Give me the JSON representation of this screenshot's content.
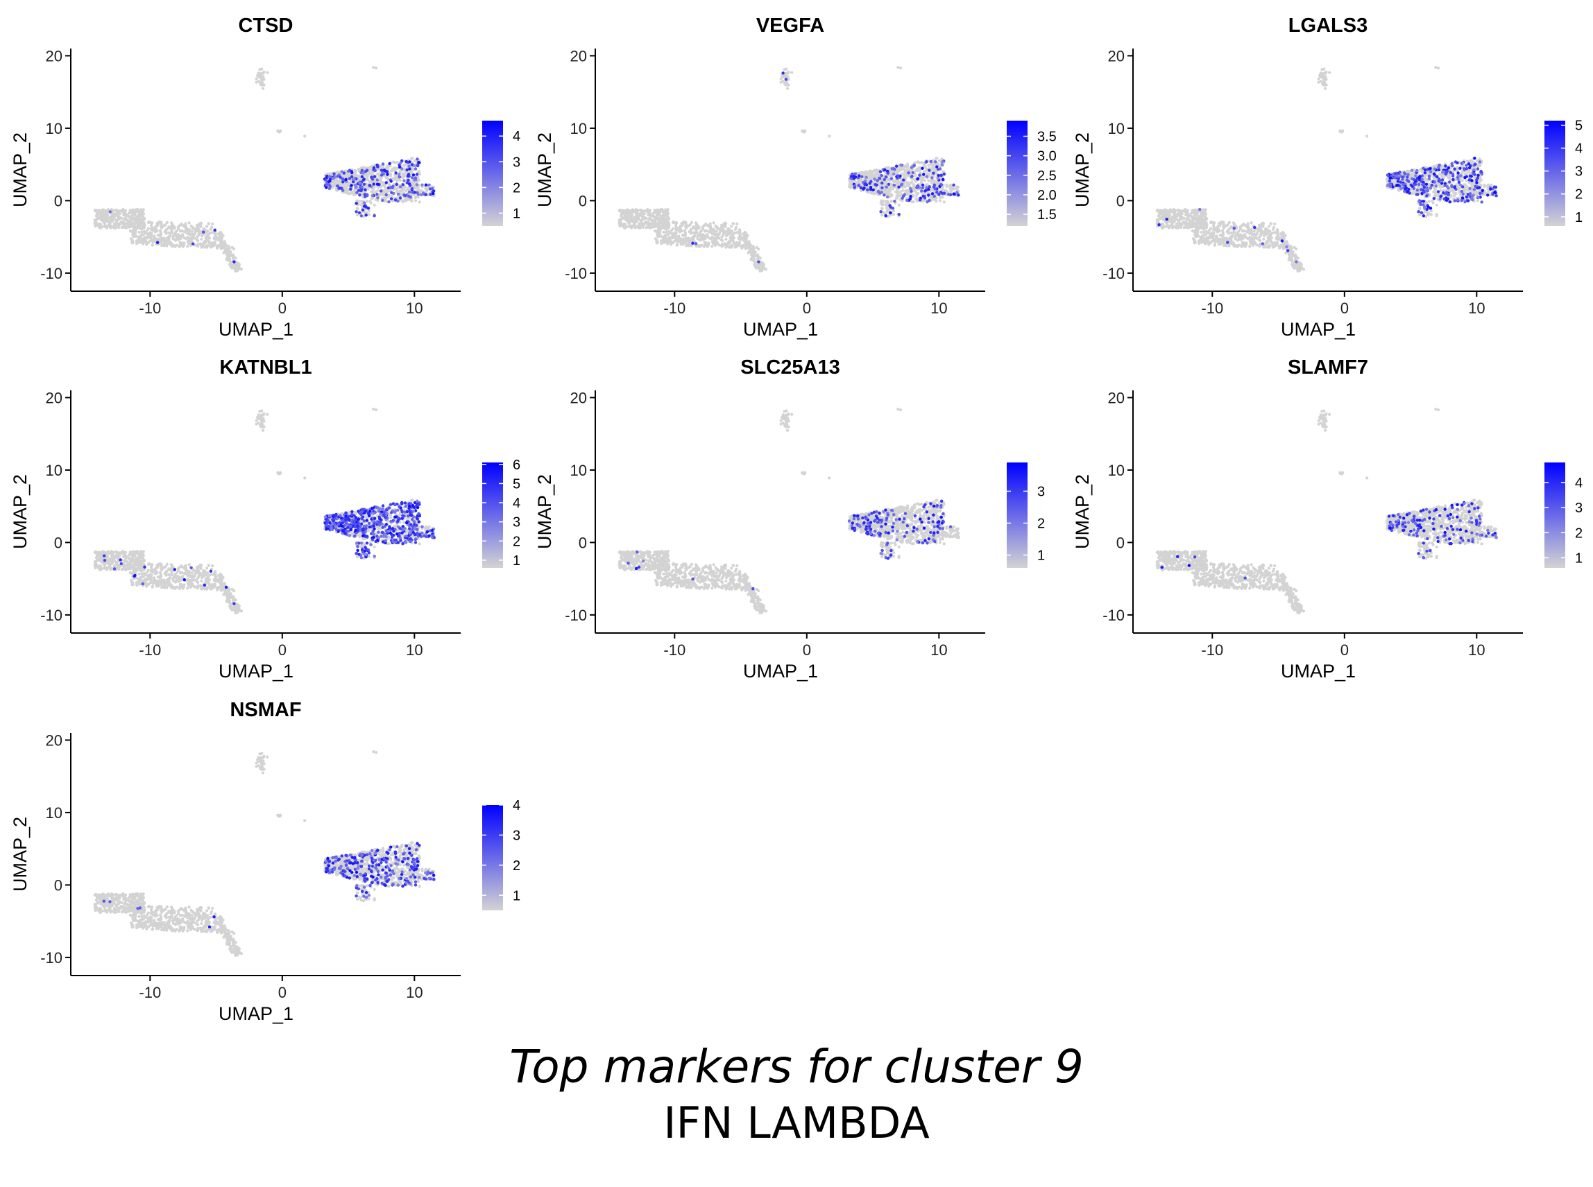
{
  "chart_data": [
    {
      "type": "scatter",
      "title": "CTSD",
      "xlabel": "UMAP_1",
      "ylabel": "UMAP_2",
      "xlim": [
        -16,
        13.5
      ],
      "ylim": [
        -12.5,
        21
      ],
      "xticks": [
        -10,
        0,
        10
      ],
      "yticks": [
        -10,
        0,
        10,
        20
      ],
      "grid": false,
      "legend": {
        "position": "right",
        "min": 0.5,
        "max": 4.6,
        "ticks": [
          "1",
          "2",
          "3",
          "4"
        ],
        "tick_values": [
          1,
          2,
          3,
          4
        ],
        "low_color": "#d3d3d3",
        "high_color": "#0000ff"
      },
      "expression_level": 0.22
    },
    {
      "type": "scatter",
      "title": "VEGFA",
      "xlabel": "UMAP_1",
      "ylabel": "UMAP_2",
      "xlim": [
        -16,
        13.5
      ],
      "ylim": [
        -12.5,
        21
      ],
      "xticks": [
        -10,
        0,
        10
      ],
      "yticks": [
        -10,
        0,
        10,
        20
      ],
      "grid": false,
      "legend": {
        "position": "right",
        "min": 1.2,
        "max": 3.9,
        "ticks": [
          "1.5",
          "2.0",
          "2.5",
          "3.0",
          "3.5"
        ],
        "tick_values": [
          1.5,
          2.0,
          2.5,
          3.0,
          3.5
        ],
        "low_color": "#d3d3d3",
        "high_color": "#0000ff"
      },
      "expression_level": 0.16
    },
    {
      "type": "scatter",
      "title": "LGALS3",
      "xlabel": "UMAP_1",
      "ylabel": "UMAP_2",
      "xlim": [
        -16,
        13.5
      ],
      "ylim": [
        -12.5,
        21
      ],
      "xticks": [
        -10,
        0,
        10
      ],
      "yticks": [
        -10,
        0,
        10,
        20
      ],
      "grid": false,
      "legend": {
        "position": "right",
        "min": 0.6,
        "max": 5.2,
        "ticks": [
          "1",
          "2",
          "3",
          "4",
          "5"
        ],
        "tick_values": [
          1,
          2,
          3,
          4,
          5
        ],
        "low_color": "#d3d3d3",
        "high_color": "#0000ff"
      },
      "expression_level": 0.3
    },
    {
      "type": "scatter",
      "title": "KATNBL1",
      "xlabel": "UMAP_1",
      "ylabel": "UMAP_2",
      "xlim": [
        -16,
        13.5
      ],
      "ylim": [
        -12.5,
        21
      ],
      "xticks": [
        -10,
        0,
        10
      ],
      "yticks": [
        -10,
        0,
        10,
        20
      ],
      "grid": false,
      "legend": {
        "position": "right",
        "min": 0.6,
        "max": 6.1,
        "ticks": [
          "1",
          "2",
          "3",
          "4",
          "5",
          "6"
        ],
        "tick_values": [
          1,
          2,
          3,
          4,
          5,
          6
        ],
        "low_color": "#d3d3d3",
        "high_color": "#0000ff"
      },
      "expression_level": 0.5
    },
    {
      "type": "scatter",
      "title": "SLC25A13",
      "xlabel": "UMAP_1",
      "ylabel": "UMAP_2",
      "xlim": [
        -16,
        13.5
      ],
      "ylim": [
        -12.5,
        21
      ],
      "xticks": [
        -10,
        0,
        10
      ],
      "yticks": [
        -10,
        0,
        10,
        20
      ],
      "grid": false,
      "legend": {
        "position": "right",
        "min": 0.6,
        "max": 3.9,
        "ticks": [
          "1",
          "2",
          "3"
        ],
        "tick_values": [
          1,
          2,
          3
        ],
        "low_color": "#d3d3d3",
        "high_color": "#0000ff"
      },
      "expression_level": 0.15
    },
    {
      "type": "scatter",
      "title": "SLAMF7",
      "xlabel": "UMAP_1",
      "ylabel": "UMAP_2",
      "xlim": [
        -16,
        13.5
      ],
      "ylim": [
        -12.5,
        21
      ],
      "xticks": [
        -10,
        0,
        10
      ],
      "yticks": [
        -10,
        0,
        10,
        20
      ],
      "grid": false,
      "legend": {
        "position": "right",
        "min": 0.6,
        "max": 4.8,
        "ticks": [
          "1",
          "2",
          "3",
          "4"
        ],
        "tick_values": [
          1,
          2,
          3,
          4
        ],
        "low_color": "#d3d3d3",
        "high_color": "#0000ff"
      },
      "expression_level": 0.12
    },
    {
      "type": "scatter",
      "title": "NSMAF",
      "xlabel": "UMAP_1",
      "ylabel": "UMAP_2",
      "xlim": [
        -16,
        13.5
      ],
      "ylim": [
        -12.5,
        21
      ],
      "xticks": [
        -10,
        0,
        10
      ],
      "yticks": [
        -10,
        0,
        10,
        20
      ],
      "grid": false,
      "legend": {
        "position": "right",
        "min": 0.5,
        "max": 4.0,
        "ticks": [
          "1",
          "2",
          "3",
          "4"
        ],
        "tick_values": [
          1,
          2,
          3,
          4
        ],
        "low_color": "#d3d3d3",
        "high_color": "#0000ff"
      },
      "expression_level": 0.25
    }
  ],
  "caption": {
    "line1": "Top markers for cluster 9",
    "line2": "IFN LAMBDA"
  }
}
